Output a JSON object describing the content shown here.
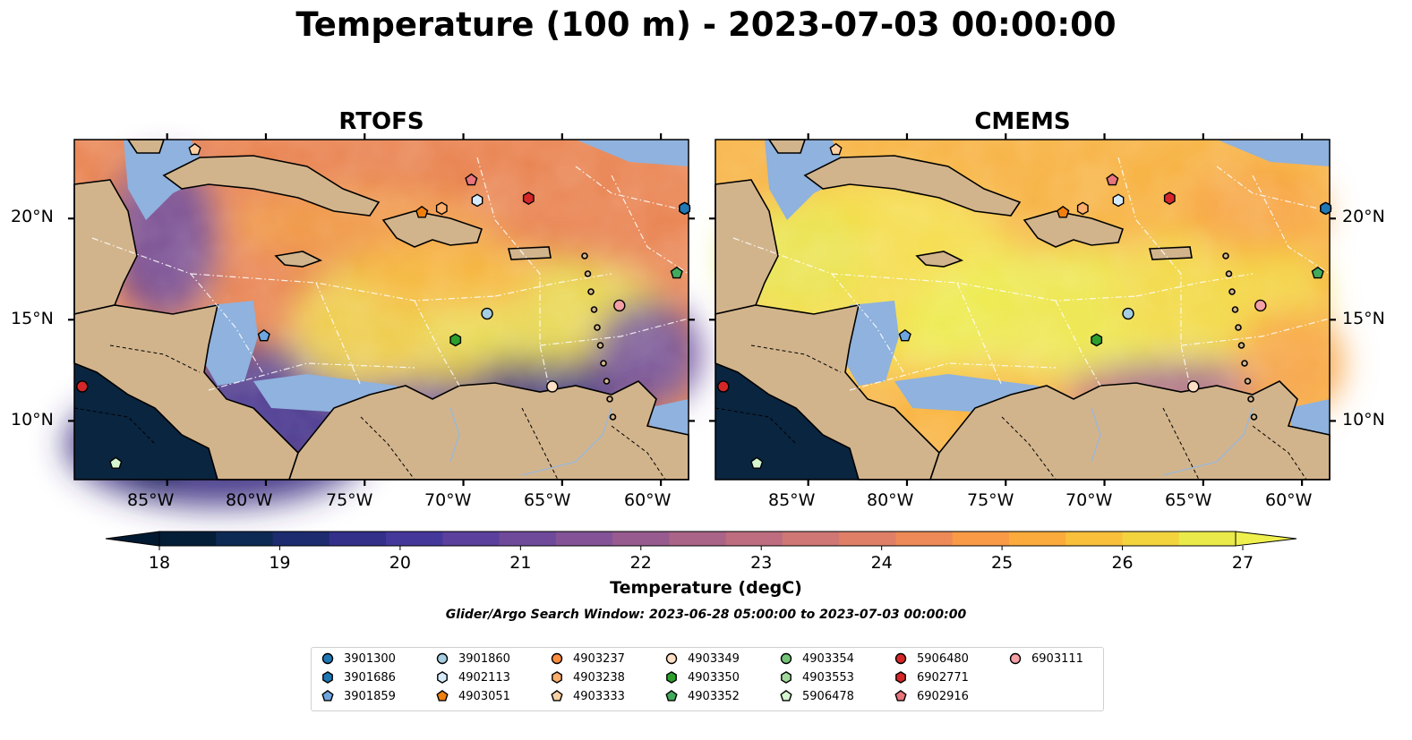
{
  "title": "Temperature (100 m) - 2023-07-03 00:00:00",
  "panels": [
    {
      "id": "rtofs",
      "title": "RTOFS",
      "theme": "cool"
    },
    {
      "id": "cmems",
      "title": "CMEMS",
      "theme": "warm"
    }
  ],
  "axes": {
    "lon_ticks": [
      "85°W",
      "80°W",
      "75°W",
      "70°W",
      "65°W",
      "60°W"
    ],
    "lat_ticks": [
      "20°N",
      "15°N",
      "10°N"
    ],
    "lon_range": [
      -89.7,
      -58.6
    ],
    "lat_range": [
      7.1,
      23.9
    ]
  },
  "colorbar": {
    "label": "Temperature (degC)",
    "ticks": [
      "18",
      "19",
      "20",
      "21",
      "22",
      "23",
      "24",
      "25",
      "26",
      "27"
    ],
    "range": [
      18,
      27
    ],
    "colors": [
      "#041e38",
      "#0d2a54",
      "#1d2c6e",
      "#33308a",
      "#45389b",
      "#5b409d",
      "#6f4a9b",
      "#845397",
      "#975b90",
      "#aa6488",
      "#bd6d7f",
      "#cf7774",
      "#e07f67",
      "#ee8a57",
      "#f89a46",
      "#fbab3c",
      "#f8c03b",
      "#f3d43f",
      "#eaea4a"
    ]
  },
  "search_window": "Glider/Argo Search Window: 2023-06-28 05:00:00 to 2023-07-03 00:00:00",
  "legend": [
    {
      "id": "3901300",
      "marker": "circle",
      "color": "#1f77b4"
    },
    {
      "id": "3901686",
      "marker": "hexagon",
      "color": "#1f77b4"
    },
    {
      "id": "3901859",
      "marker": "pentagon",
      "color": "#6ea6e0"
    },
    {
      "id": "3901860",
      "marker": "circle",
      "color": "#a6cee3"
    },
    {
      "id": "4902113",
      "marker": "hexagon",
      "color": "#d6ebfa"
    },
    {
      "id": "4903051",
      "marker": "pentagon",
      "color": "#f07f0e"
    },
    {
      "id": "4903237",
      "marker": "circle",
      "color": "#fd8d3c"
    },
    {
      "id": "4903238",
      "marker": "hexagon",
      "color": "#fdae6b"
    },
    {
      "id": "4903333",
      "marker": "pentagon",
      "color": "#fdd0a2"
    },
    {
      "id": "4903349",
      "marker": "circle",
      "color": "#fde0c5"
    },
    {
      "id": "4903350",
      "marker": "hexagon",
      "color": "#2ca02c"
    },
    {
      "id": "4903352",
      "marker": "pentagon",
      "color": "#41ab5d"
    },
    {
      "id": "4903354",
      "marker": "circle",
      "color": "#74c476"
    },
    {
      "id": "4903553",
      "marker": "hexagon",
      "color": "#a1d99b"
    },
    {
      "id": "5906478",
      "marker": "pentagon",
      "color": "#d5f5d0"
    },
    {
      "id": "5906480",
      "marker": "circle",
      "color": "#d62728"
    },
    {
      "id": "6902771",
      "marker": "hexagon",
      "color": "#d62728"
    },
    {
      "id": "6902916",
      "marker": "pentagon",
      "color": "#e8747c"
    },
    {
      "id": "6903111",
      "marker": "circle",
      "color": "#f4a0a6"
    }
  ],
  "floats": [
    {
      "id": "3901300",
      "lon": -58.8,
      "lat": 20.5
    },
    {
      "id": "3901686",
      "lon": -58.8,
      "lat": 20.5
    },
    {
      "id": "3901859",
      "lon": -80.1,
      "lat": 14.2
    },
    {
      "id": "3901860",
      "lon": -68.8,
      "lat": 15.3
    },
    {
      "id": "4902113",
      "lon": -69.3,
      "lat": 20.9
    },
    {
      "id": "4903051",
      "lon": -72.1,
      "lat": 20.3
    },
    {
      "id": "4903238",
      "lon": -71.1,
      "lat": 20.5
    },
    {
      "id": "4903333",
      "lon": -83.6,
      "lat": 23.4
    },
    {
      "id": "4903352",
      "lon": -59.2,
      "lat": 17.3
    },
    {
      "id": "4903350",
      "lon": -70.4,
      "lat": 14.0
    },
    {
      "id": "5906478",
      "lon": -87.6,
      "lat": 7.9
    },
    {
      "id": "5906480",
      "lon": -89.3,
      "lat": 11.7
    },
    {
      "id": "6902771",
      "lon": -66.7,
      "lat": 21.0
    },
    {
      "id": "6902916",
      "lon": -69.6,
      "lat": 21.9
    },
    {
      "id": "6903111",
      "lon": -62.1,
      "lat": 15.7
    },
    {
      "id": "4903349",
      "lon": -65.5,
      "lat": 11.7
    }
  ]
}
